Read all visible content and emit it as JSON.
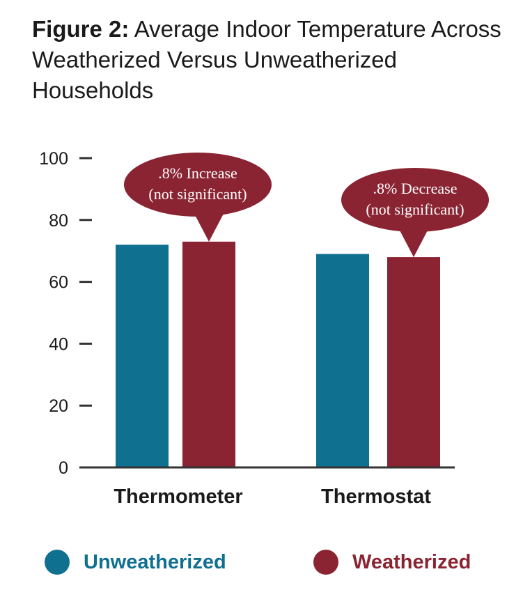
{
  "title": {
    "lead": "Figure 2:",
    "text": "Average Indoor Temperature Across Weatherized Versus Unweatherized Households"
  },
  "colors": {
    "unweatherized": "#10708f",
    "weatherized": "#8b2432",
    "axis": "#333333",
    "text": "#1a1a1a"
  },
  "chart_data": {
    "type": "bar",
    "title": "Average Indoor Temperature Across Weatherized Versus Unweatherized Households",
    "xlabel": "",
    "ylabel": "",
    "categories": [
      "Thermometer",
      "Thermostat"
    ],
    "series": [
      {
        "name": "Unweatherized",
        "values": [
          72,
          69
        ]
      },
      {
        "name": "Weatherized",
        "values": [
          73,
          68
        ]
      }
    ],
    "yticks": [
      0,
      20,
      40,
      60,
      80,
      100
    ],
    "ylim": [
      0,
      100
    ],
    "grid": false,
    "legend_position": "bottom",
    "annotations": [
      {
        "category": "Thermometer",
        "series": "Weatherized",
        "lines": [
          ".8% Increase",
          "(not significant)"
        ]
      },
      {
        "category": "Thermostat",
        "series": "Weatherized",
        "lines": [
          ".8% Decrease",
          "(not significant)"
        ]
      }
    ]
  }
}
